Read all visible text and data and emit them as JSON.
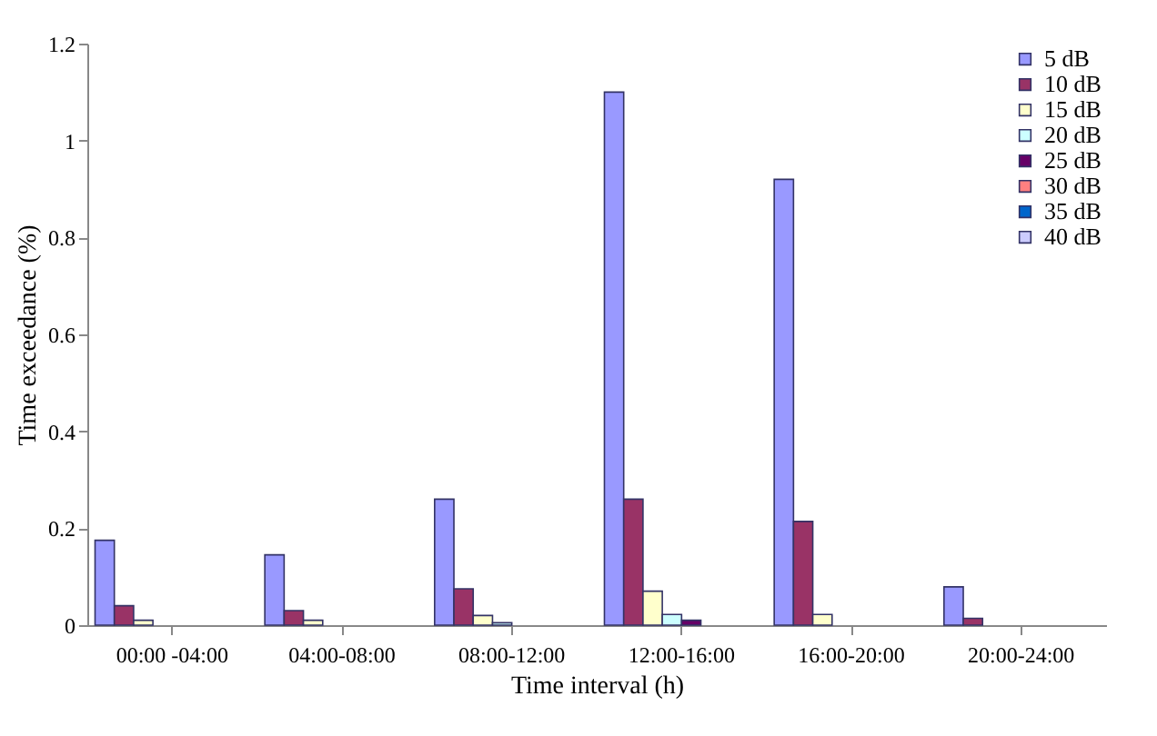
{
  "chart_data": {
    "type": "bar",
    "xlabel": "Time interval (h)",
    "ylabel": "Time exceedance (%)",
    "categories": [
      "00:00 -04:00",
      "04:00-08:00",
      "08:00-12:00",
      "12:00-16:00",
      "16:00-20:00",
      "20:00-24:00"
    ],
    "series": [
      {
        "name": "5 dB",
        "color": "#9999ff",
        "values": [
          0.175,
          0.145,
          0.26,
          1.1,
          0.92,
          0.079
        ]
      },
      {
        "name": "10 dB",
        "color": "#993366",
        "values": [
          0.04,
          0.03,
          0.075,
          0.26,
          0.214,
          0.014
        ]
      },
      {
        "name": "15 dB",
        "color": "#ffffcc",
        "values": [
          0.01,
          0.01,
          0.02,
          0.07,
          0.022,
          null
        ]
      },
      {
        "name": "20 dB",
        "color": "#ccffff",
        "values": [
          null,
          null,
          0.005,
          0.022,
          null,
          null
        ]
      },
      {
        "name": "25 dB",
        "color": "#660066",
        "values": [
          null,
          null,
          null,
          0.01,
          null,
          null
        ]
      },
      {
        "name": "30 dB",
        "color": "#ff8080",
        "values": [
          null,
          null,
          null,
          null,
          null,
          null
        ]
      },
      {
        "name": "35 dB",
        "color": "#0066cc",
        "values": [
          null,
          null,
          null,
          null,
          null,
          null
        ]
      },
      {
        "name": "40 dB",
        "color": "#ccccff",
        "values": [
          null,
          null,
          null,
          null,
          null,
          null
        ]
      }
    ],
    "ylim": [
      0,
      1.2
    ],
    "yticks": [
      0,
      0.2,
      0.4,
      0.6,
      0.8,
      1,
      1.2
    ],
    "grid": false,
    "legend": "top right"
  }
}
